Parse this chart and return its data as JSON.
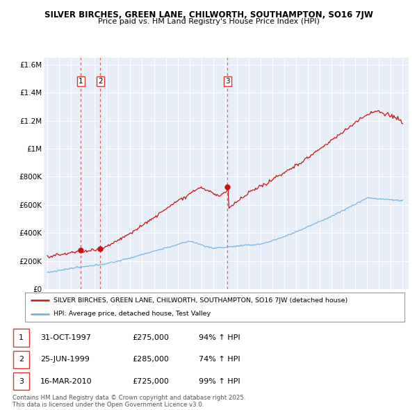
{
  "title1": "SILVER BIRCHES, GREEN LANE, CHILWORTH, SOUTHAMPTON, SO16 7JW",
  "title2": "Price paid vs. HM Land Registry's House Price Index (HPI)",
  "ylim": [
    0,
    1650000
  ],
  "yticks": [
    0,
    200000,
    400000,
    600000,
    800000,
    1000000,
    1200000,
    1400000,
    1600000
  ],
  "ytick_labels": [
    "£0",
    "£200K",
    "£400K",
    "£600K",
    "£800K",
    "£1M",
    "£1.2M",
    "£1.4M",
    "£1.6M"
  ],
  "sale_dates": [
    1997.83,
    1999.48,
    2010.21
  ],
  "sale_prices": [
    275000,
    285000,
    725000
  ],
  "sale_labels": [
    "1",
    "2",
    "3"
  ],
  "legend_line1": "SILVER BIRCHES, GREEN LANE, CHILWORTH, SOUTHAMPTON, SO16 7JW (detached house)",
  "legend_line2": "HPI: Average price, detached house, Test Valley",
  "table_data": [
    [
      "1",
      "31-OCT-1997",
      "£275,000",
      "94% ↑ HPI"
    ],
    [
      "2",
      "25-JUN-1999",
      "£285,000",
      "74% ↑ HPI"
    ],
    [
      "3",
      "16-MAR-2010",
      "£725,000",
      "99% ↑ HPI"
    ]
  ],
  "footer": "Contains HM Land Registry data © Crown copyright and database right 2025.\nThis data is licensed under the Open Government Licence v3.0.",
  "hpi_color": "#6aaee0",
  "price_color": "#cc1111",
  "dashed_color": "#dd3333",
  "background_color": "#ffffff",
  "plot_bg_color": "#e8eef8"
}
